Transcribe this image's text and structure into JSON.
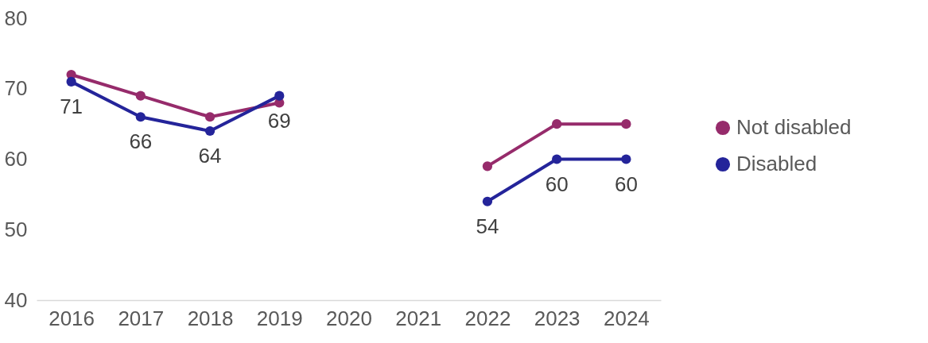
{
  "chart_data": {
    "type": "line",
    "categories": [
      "2016",
      "2017",
      "2018",
      "2019",
      "2020",
      "2021",
      "2022",
      "2023",
      "2024"
    ],
    "series": [
      {
        "name": "Not disabled",
        "color": "#962b6b",
        "values": [
          72,
          69,
          66,
          68,
          null,
          null,
          59,
          65,
          65
        ]
      },
      {
        "name": "Disabled",
        "color": "#24249a",
        "values": [
          71,
          66,
          64,
          69,
          null,
          null,
          54,
          60,
          60
        ],
        "value_labels": [
          "71",
          "66",
          "64",
          "69",
          null,
          null,
          "54",
          "60",
          "60"
        ]
      }
    ],
    "ylim": [
      40,
      80
    ],
    "yticks": [
      40,
      50,
      60,
      70,
      80
    ],
    "grid": false,
    "legend": "right",
    "marker": "circle",
    "line_style": "solid"
  }
}
